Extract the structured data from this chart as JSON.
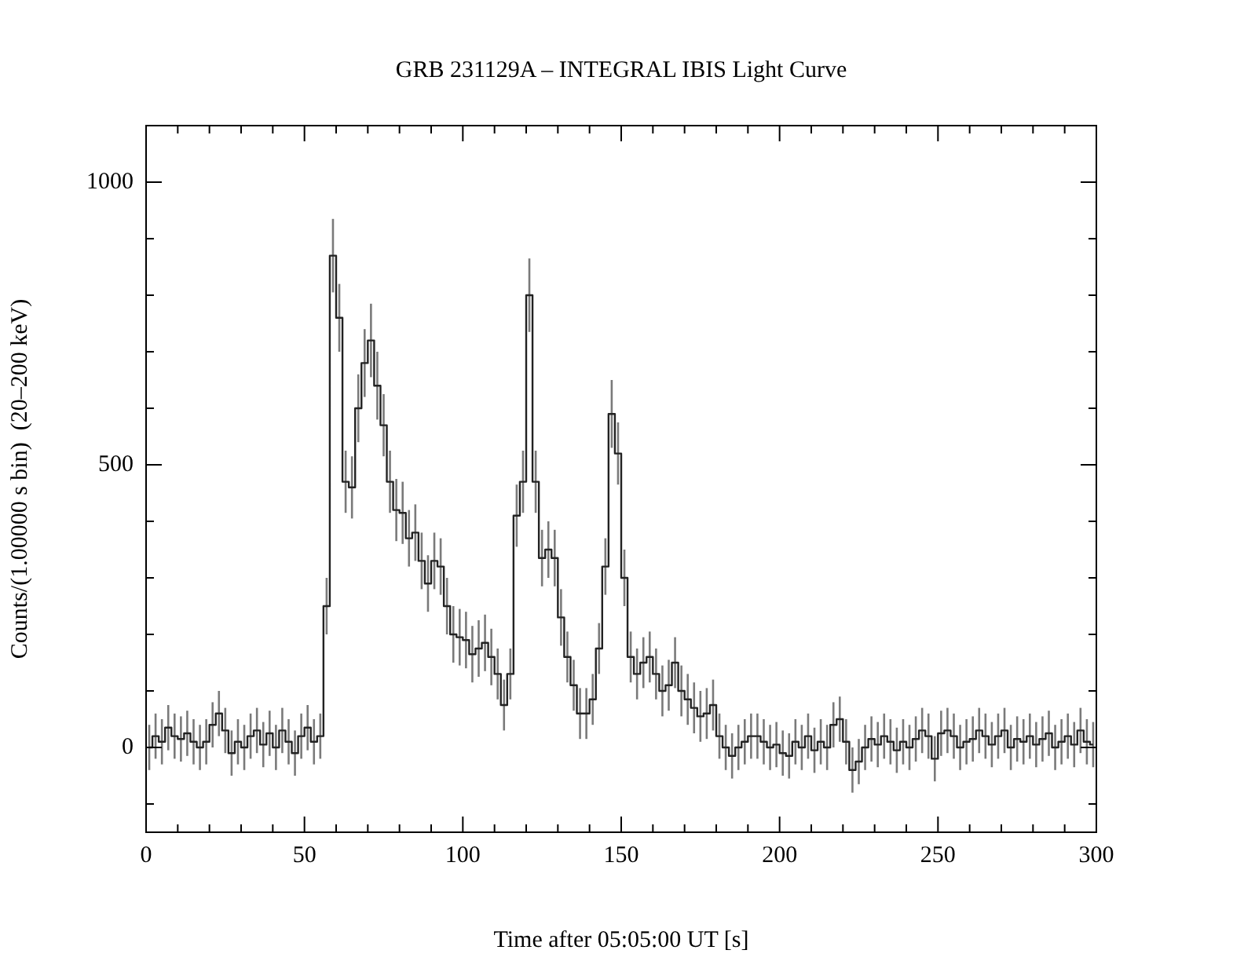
{
  "chart_data": {
    "type": "step",
    "title": "GRB 231129A – INTEGRAL IBIS Light Curve",
    "xlabel": "Time after 05:05:00 UT [s]",
    "ylabel": "Counts/(1.00000 s bin)  (20–200 keV)",
    "x": [
      1,
      3,
      5,
      7,
      9,
      11,
      13,
      15,
      17,
      19,
      21,
      23,
      25,
      27,
      29,
      31,
      33,
      35,
      37,
      39,
      41,
      43,
      45,
      47,
      49,
      51,
      53,
      55,
      57,
      59,
      61,
      63,
      65,
      67,
      69,
      71,
      73,
      75,
      77,
      79,
      81,
      83,
      85,
      87,
      89,
      91,
      93,
      95,
      97,
      99,
      101,
      103,
      105,
      107,
      109,
      111,
      113,
      115,
      117,
      119,
      121,
      123,
      125,
      127,
      129,
      131,
      133,
      135,
      137,
      139,
      141,
      143,
      145,
      147,
      149,
      151,
      153,
      155,
      157,
      159,
      161,
      163,
      165,
      167,
      169,
      171,
      173,
      175,
      177,
      179,
      181,
      183,
      185,
      187,
      189,
      191,
      193,
      195,
      197,
      199,
      201,
      203,
      205,
      207,
      209,
      211,
      213,
      215,
      217,
      219,
      221,
      223,
      225,
      227,
      229,
      231,
      233,
      235,
      237,
      239,
      241,
      243,
      245,
      247,
      249,
      251,
      253,
      255,
      257,
      259,
      261,
      263,
      265,
      267,
      269,
      271,
      273,
      275,
      277,
      279,
      281,
      283,
      285,
      287,
      289,
      291,
      293,
      295,
      297,
      299
    ],
    "series": [
      {
        "color": "#222222",
        "values": [
          0,
          20,
          10,
          35,
          20,
          15,
          25,
          10,
          0,
          10,
          40,
          60,
          30,
          -10,
          10,
          0,
          20,
          30,
          5,
          25,
          0,
          30,
          10,
          -10,
          20,
          35,
          10,
          20,
          250,
          870,
          760,
          470,
          460,
          600,
          680,
          720,
          640,
          570,
          470,
          420,
          415,
          370,
          380,
          330,
          290,
          330,
          320,
          250,
          200,
          195,
          190,
          165,
          175,
          185,
          160,
          130,
          75,
          130,
          410,
          470,
          800,
          470,
          335,
          350,
          335,
          230,
          160,
          110,
          60,
          60,
          85,
          175,
          320,
          590,
          520,
          300,
          160,
          130,
          150,
          160,
          130,
          100,
          110,
          150,
          100,
          85,
          70,
          55,
          60,
          75,
          20,
          0,
          -15,
          0,
          10,
          20,
          20,
          10,
          0,
          5,
          -10,
          -15,
          10,
          0,
          20,
          -5,
          10,
          0,
          40,
          50,
          10,
          -40,
          -25,
          0,
          15,
          5,
          20,
          10,
          -5,
          10,
          0,
          15,
          30,
          20,
          -20,
          25,
          30,
          20,
          0,
          10,
          15,
          30,
          20,
          5,
          20,
          30,
          0,
          15,
          10,
          20,
          5,
          15,
          25,
          0,
          10,
          20,
          5,
          30,
          10,
          5
        ],
        "errors": [
          40,
          40,
          40,
          40,
          40,
          40,
          40,
          40,
          40,
          40,
          40,
          40,
          40,
          40,
          40,
          40,
          40,
          40,
          40,
          40,
          40,
          40,
          40,
          40,
          40,
          40,
          40,
          40,
          50,
          65,
          60,
          55,
          55,
          60,
          60,
          65,
          60,
          55,
          55,
          55,
          55,
          50,
          50,
          50,
          50,
          50,
          50,
          50,
          50,
          50,
          50,
          50,
          50,
          50,
          50,
          45,
          45,
          45,
          55,
          55,
          65,
          55,
          50,
          50,
          50,
          50,
          45,
          45,
          45,
          45,
          45,
          45,
          50,
          60,
          55,
          50,
          45,
          45,
          45,
          45,
          45,
          45,
          45,
          45,
          45,
          45,
          45,
          45,
          45,
          45,
          40,
          40,
          40,
          40,
          40,
          40,
          40,
          40,
          40,
          40,
          40,
          40,
          40,
          40,
          40,
          40,
          40,
          40,
          40,
          40,
          40,
          40,
          40,
          40,
          40,
          40,
          40,
          40,
          40,
          40,
          40,
          40,
          40,
          40,
          40,
          40,
          40,
          40,
          40,
          40,
          40,
          40,
          40,
          40,
          40,
          40,
          40,
          40,
          40,
          40,
          40,
          40,
          40,
          40,
          40,
          40,
          40,
          40,
          40,
          40
        ]
      }
    ],
    "xlim": [
      0,
      300
    ],
    "xticks": [
      0,
      {
        "value": 10,
        "label": null
      },
      {
        "value": 20,
        "label": null
      },
      {
        "value": 30,
        "label": null
      },
      {
        "value": 40,
        "label": null
      },
      50,
      {
        "value": 60,
        "label": null
      },
      {
        "value": 70,
        "label": null
      },
      {
        "value": 80,
        "label": null
      },
      {
        "value": 90,
        "label": null
      },
      100,
      {
        "value": 110,
        "label": null
      },
      {
        "value": 120,
        "label": null
      },
      {
        "value": 130,
        "label": null
      },
      {
        "value": 140,
        "label": null
      },
      150,
      {
        "value": 160,
        "label": null
      },
      {
        "value": 170,
        "label": null
      },
      {
        "value": 180,
        "label": null
      },
      {
        "value": 190,
        "label": null
      },
      200,
      {
        "value": 210,
        "label": null
      },
      {
        "value": 220,
        "label": null
      },
      {
        "value": 230,
        "label": null
      },
      {
        "value": 240,
        "label": null
      },
      250,
      {
        "value": 260,
        "label": null
      },
      {
        "value": 270,
        "label": null
      },
      {
        "value": 280,
        "label": null
      },
      {
        "value": 290,
        "label": null
      },
      300
    ],
    "ylim": [
      -150,
      1100
    ],
    "yticks": [
      {
        "value": -100,
        "label": null
      },
      0,
      {
        "value": 100,
        "label": null
      },
      {
        "value": 200,
        "label": null
      },
      {
        "value": 300,
        "label": null
      },
      {
        "value": 400,
        "label": null
      },
      500,
      {
        "value": 600,
        "label": null
      },
      {
        "value": 700,
        "label": null
      },
      {
        "value": 800,
        "label": null
      },
      {
        "value": 900,
        "label": null
      },
      1000
    ],
    "marker": "none",
    "line_style": "solid"
  }
}
